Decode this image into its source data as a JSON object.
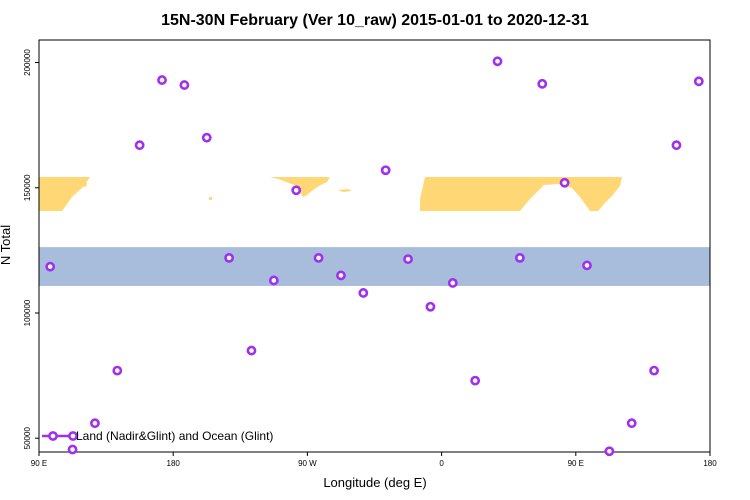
{
  "chart_data": {
    "type": "scatter",
    "title": "15N-30N February (Ver 10_raw)   2015-01-01 to 2020-12-31",
    "xlabel": "Longitude (deg E)",
    "ylabel": "N Total",
    "x_ticks": [
      {
        "value": 0,
        "label": "90 E"
      },
      {
        "value": 90,
        "label": "180"
      },
      {
        "value": 180,
        "label": "90 W"
      },
      {
        "value": 270,
        "label": "0"
      },
      {
        "value": 360,
        "label": "90 E"
      },
      {
        "value": 450,
        "label": "180"
      }
    ],
    "y_ticks": [
      50000,
      100000,
      150000,
      200000
    ],
    "xlim": [
      0,
      450
    ],
    "ylim": [
      44500,
      209000
    ],
    "grid": false,
    "legend_position": "bottom-left",
    "map_band": {
      "lat_range": "15N-30N",
      "y_range": [
        110800,
        126300
      ],
      "ocean_color": "#a7bddb",
      "land_color": "#ffd774"
    },
    "series": [
      {
        "name": "Land (Nadir&Glint) and Ocean (Glint)",
        "color": "#a02ff0",
        "x": [
          7.5,
          22.5,
          37.5,
          52.5,
          67.5,
          82.5,
          97.5,
          112.5,
          127.5,
          142.5,
          157.5,
          172.5,
          187.5,
          202.5,
          217.5,
          232.5,
          247.5,
          262.5,
          277.5,
          292.5,
          307.5,
          322.5,
          337.5,
          352.5,
          367.5,
          382.5,
          397.5,
          412.5,
          427.5,
          442.5
        ],
        "y": [
          118500,
          45500,
          56000,
          77000,
          167000,
          193000,
          191000,
          170000,
          122000,
          85000,
          113000,
          149000,
          122000,
          115000,
          108000,
          157000,
          121500,
          102500,
          112000,
          73000,
          200500,
          122000,
          191500,
          152000,
          119000,
          44800,
          56000,
          77000,
          167000,
          192500
        ]
      }
    ]
  }
}
